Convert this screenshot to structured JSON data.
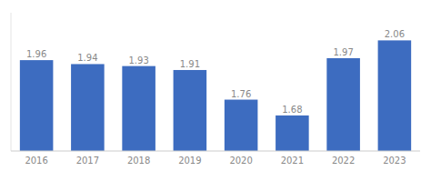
{
  "chart_data": {
    "type": "bar",
    "categories": [
      "2016",
      "2017",
      "2018",
      "2019",
      "2020",
      "2021",
      "2022",
      "2023"
    ],
    "values": [
      1.96,
      1.94,
      1.93,
      1.91,
      1.76,
      1.68,
      1.97,
      2.06
    ],
    "color": "#3d6cc0",
    "ylim": [
      1.5,
      2.2
    ],
    "data_labels": true,
    "tick_labels": "x"
  }
}
